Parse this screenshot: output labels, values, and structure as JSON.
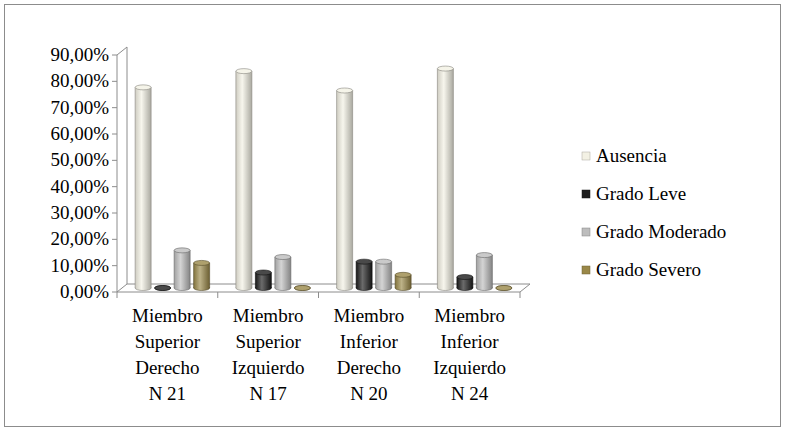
{
  "chart_data": {
    "type": "bar",
    "categories": [
      "Miembro\nSuperior\nDerecho\nN 21",
      "Miembro\nSuperior\nIzquierdo\nN 17",
      "Miembro\nInferior\nDerecho\nN 20",
      "Miembro\nInferior\nIzquierdo\nN 24"
    ],
    "series": [
      {
        "name": "Ausencia",
        "color": "#f3f1e4",
        "values": [
          76.19,
          82.35,
          75,
          83.33
        ]
      },
      {
        "name": "Grado Leve",
        "color": "#1c1c1c",
        "values": [
          0,
          5.88,
          10,
          4.17
        ]
      },
      {
        "name": "Grado Moderado",
        "color": "#bdbdbd",
        "values": [
          14.29,
          11.76,
          10,
          12.5
        ]
      },
      {
        "name": "Grado Severo",
        "color": "#9a8848",
        "values": [
          9.52,
          0,
          5,
          0
        ]
      }
    ],
    "ylim": [
      0,
      90
    ],
    "yticks": [
      {
        "value": 0,
        "label": "0,00%"
      },
      {
        "value": 10,
        "label": "10,00%"
      },
      {
        "value": 20,
        "label": "20,00%"
      },
      {
        "value": 30,
        "label": "30,00%"
      },
      {
        "value": 40,
        "label": "40,00%"
      },
      {
        "value": 50,
        "label": "50,00%"
      },
      {
        "value": 60,
        "label": "60,00%"
      },
      {
        "value": 70,
        "label": "70,00%"
      },
      {
        "value": 80,
        "label": "80,00%"
      },
      {
        "value": 90,
        "label": "90,00%"
      }
    ],
    "grid": false,
    "legend": "right"
  }
}
